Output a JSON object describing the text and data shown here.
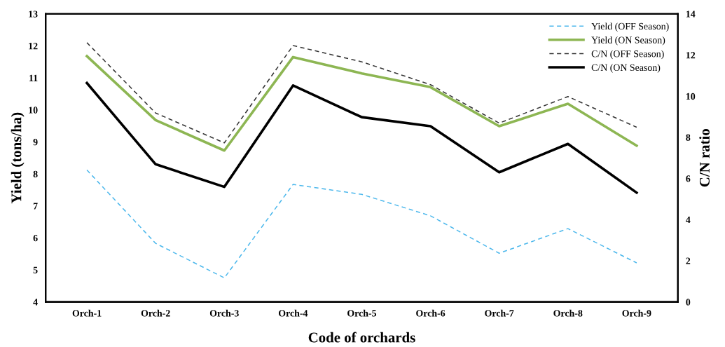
{
  "chart_data": {
    "type": "line",
    "xlabel": "Code of orchards",
    "ylabel": "Yield (tons/ha)",
    "y2label": "C/N ratio",
    "categories": [
      "Orch-1",
      "Orch-2",
      "Orch-3",
      "Orch-4",
      "Orch-5",
      "Orch-6",
      "Orch-7",
      "Orch-8",
      "Orch-9"
    ],
    "series": [
      {
        "name": "Yield (OFF Season)",
        "color": "#4db8ec",
        "line_style": "dashed",
        "values": [
          8.12,
          5.83,
          4.75,
          7.67,
          7.36,
          6.69,
          5.52,
          6.29,
          5.22
        ]
      },
      {
        "name": "Yield (ON Season)",
        "color": "#8db653",
        "line_style": "solid",
        "values": [
          11.68,
          9.68,
          8.73,
          11.65,
          11.14,
          10.71,
          9.49,
          10.19,
          8.88
        ]
      },
      {
        "name": "C/N (OFF Season)",
        "color": "#333333",
        "line_style": "dashed",
        "axis": "y2",
        "values": [
          12.6,
          9.18,
          7.73,
          12.46,
          11.67,
          10.56,
          8.69,
          9.98,
          8.49
        ]
      },
      {
        "name": "C/N (ON Season)",
        "color": "#000000",
        "line_style": "solid",
        "axis": "y2",
        "values": [
          10.64,
          6.69,
          5.59,
          10.52,
          8.98,
          8.54,
          6.3,
          7.68,
          5.31
        ]
      }
    ],
    "ylim": [
      4,
      13
    ],
    "yticks": [
      4,
      5,
      6,
      7,
      8,
      9,
      10,
      11,
      12,
      13
    ],
    "y2lim": [
      0,
      14
    ],
    "y2ticks": [
      0,
      2,
      4,
      6,
      8,
      10,
      12,
      14
    ],
    "grid": false,
    "legend": "top right",
    "marker": "none"
  }
}
